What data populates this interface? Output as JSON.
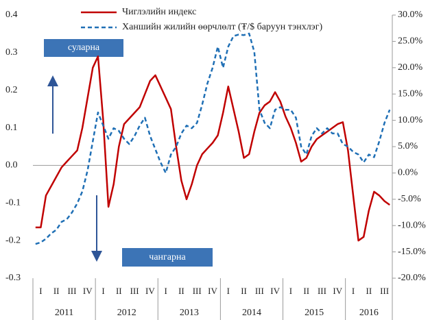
{
  "chart_data": {
    "type": "line",
    "annotations": [
      "суларна",
      "чангарна"
    ],
    "categories": [
      null,
      "I",
      null,
      null,
      "II",
      null,
      null,
      "III",
      null,
      null,
      "IV",
      null,
      null,
      "I",
      null,
      null,
      "II",
      null,
      null,
      "III",
      null,
      null,
      "IV",
      null,
      null,
      "I",
      null,
      null,
      "II",
      null,
      null,
      "III",
      null,
      null,
      "IV",
      null,
      null,
      "I",
      null,
      null,
      "II",
      null,
      null,
      "III",
      null,
      null,
      "IV",
      null,
      null,
      "I",
      null,
      null,
      "II",
      null,
      null,
      "III",
      null,
      null,
      "IV",
      null,
      null,
      "I",
      null,
      null,
      "II",
      null,
      null,
      "III",
      null
    ],
    "years": [
      "2011",
      "2012",
      "2013",
      "2014",
      "2015",
      "2016"
    ],
    "ylim": [
      -0.3,
      0.4
    ],
    "yticks": [
      {
        "value": -0.3,
        "label": "-0.3"
      },
      {
        "value": -0.2,
        "label": "-0.2"
      },
      {
        "value": -0.1,
        "label": "-0.1"
      },
      {
        "value": 0,
        "label": "0.0"
      },
      {
        "value": 0.1,
        "label": "0.1"
      },
      {
        "value": 0.2,
        "label": "0.2"
      },
      {
        "value": 0.3,
        "label": "0.3"
      },
      {
        "value": 0.4,
        "label": "0.4"
      }
    ],
    "y2lim": [
      -20,
      30
    ],
    "y2ticks": [
      {
        "value": -20,
        "label": "-20.0%"
      },
      {
        "value": -15,
        "label": "-15.0%"
      },
      {
        "value": -10,
        "label": "-10.0%"
      },
      {
        "value": -5,
        "label": "-5.0%"
      },
      {
        "value": 0,
        "label": "0.0%"
      },
      {
        "value": 5,
        "label": "5.0%"
      },
      {
        "value": 10,
        "label": "10.0%"
      },
      {
        "value": 15,
        "label": "15.0%"
      },
      {
        "value": 20,
        "label": "20.0%"
      },
      {
        "value": 25,
        "label": "25.0%"
      },
      {
        "value": 30,
        "label": "30.0%"
      }
    ],
    "series": [
      {
        "name": "Чиглэлийн индекс",
        "color": "#c00000",
        "dash": false,
        "values": [
          -0.165,
          -0.165,
          -0.08,
          -0.055,
          -0.03,
          -0.005,
          0.01,
          0.025,
          0.04,
          0.1,
          0.18,
          0.26,
          0.29,
          0.12,
          -0.11,
          -0.05,
          0.05,
          0.11,
          0.125,
          0.14,
          0.155,
          0.19,
          0.225,
          0.24,
          0.21,
          0.18,
          0.15,
          0.05,
          -0.04,
          -0.09,
          -0.05,
          0.0,
          0.03,
          0.045,
          0.06,
          0.08,
          0.14,
          0.21,
          0.15,
          0.09,
          0.02,
          0.03,
          0.09,
          0.14,
          0.16,
          0.17,
          0.195,
          0.17,
          0.13,
          0.1,
          0.06,
          0.01,
          0.02,
          0.05,
          0.07,
          0.08,
          0.09,
          0.1,
          0.11,
          0.115,
          0.04,
          -0.08,
          -0.2,
          -0.19,
          -0.12,
          -0.07,
          -0.08,
          -0.095,
          -0.105
        ]
      },
      {
        "name": "Ханшийн жилийн өөрчлөлт (₮/$ баруун тэнхлэг)",
        "color": "#1f6fb5",
        "dash": true,
        "axis": "y2",
        "values": [
          -13.5,
          -13.2,
          -12.5,
          -11.5,
          -10.8,
          -9.3,
          -8.8,
          -7.5,
          -5.8,
          -3.5,
          0.5,
          6,
          11.5,
          9,
          6.5,
          8.5,
          8,
          6.5,
          5.5,
          7,
          9,
          10.5,
          7,
          4.5,
          2,
          0,
          3.5,
          5,
          7.5,
          9,
          8.5,
          9.5,
          13,
          17,
          20,
          24,
          20,
          24,
          26,
          26.3,
          26.2,
          26.5,
          23,
          12,
          9.5,
          8.5,
          12,
          12.5,
          12,
          12,
          10.5,
          5,
          3.5,
          7,
          8.5,
          7.5,
          8.5,
          7.5,
          7.5,
          5.5,
          5,
          4,
          3.5,
          2,
          3.5,
          3,
          6,
          9.5,
          12
        ]
      }
    ]
  }
}
